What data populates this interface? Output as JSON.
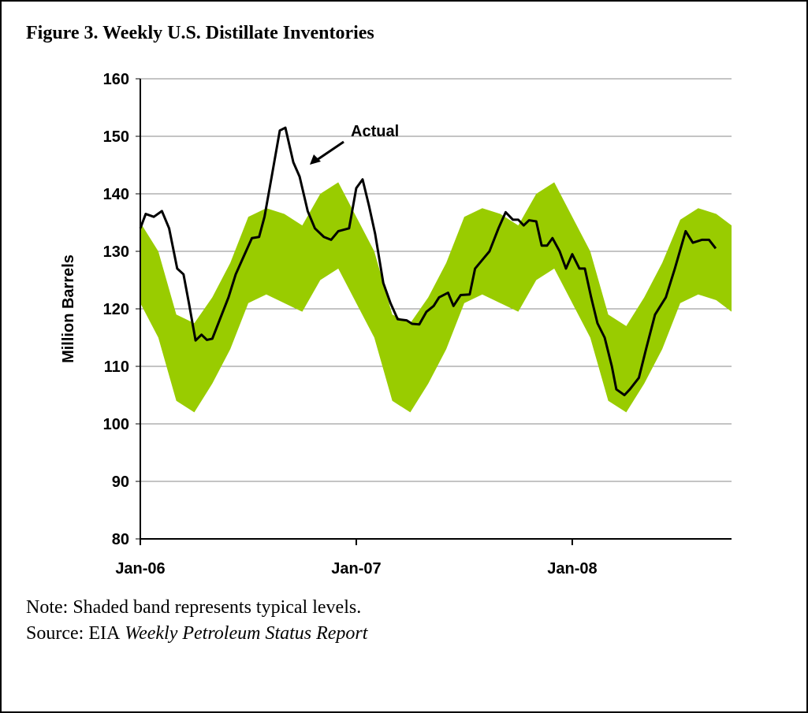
{
  "chart_data": {
    "type": "band-line",
    "title": "Figure 3. Weekly U.S. Distillate Inventories",
    "ylabel": "Million Barrels",
    "annotation": "Actual",
    "note": "Note: Shaded band represents typical levels.",
    "source_prefix": "Source: EIA",
    "source_title": "Weekly Petroleum Status Report",
    "xlim": [
      0,
      32.85
    ],
    "xticks": [
      {
        "value": 0,
        "label": "Jan-06"
      },
      {
        "value": 12,
        "label": "Jan-07"
      },
      {
        "value": 24,
        "label": "Jan-08"
      }
    ],
    "ylim": [
      80,
      160
    ],
    "yticks": [
      80,
      90,
      100,
      110,
      120,
      130,
      140,
      150,
      160
    ],
    "grid": true,
    "band": {
      "color": "#99cc00",
      "x": [
        0,
        1,
        2,
        3,
        4,
        5,
        6,
        7,
        8,
        9,
        10,
        11,
        12,
        13,
        14,
        15,
        16,
        17,
        18,
        19,
        20,
        21,
        22,
        23,
        24,
        25,
        26,
        27,
        28,
        29,
        30,
        31,
        32,
        32.85
      ],
      "upper": [
        135,
        130,
        119,
        117.5,
        122,
        128,
        136,
        137.5,
        136.5,
        134.5,
        140,
        142,
        136,
        130,
        119,
        117.5,
        122,
        128,
        136,
        137.5,
        136.5,
        134.5,
        140,
        142,
        136,
        130,
        119,
        117,
        122,
        128,
        135.5,
        137.5,
        136.5,
        134.5
      ],
      "lower": [
        121,
        115,
        104,
        102,
        107,
        113,
        121,
        122.5,
        121,
        119.5,
        125,
        127,
        121,
        115,
        104,
        102,
        107,
        113,
        121,
        122.5,
        121,
        119.5,
        125,
        127,
        121,
        115,
        104,
        102,
        107,
        113,
        121,
        122.5,
        121.5,
        119.5
      ]
    },
    "series": [
      {
        "color": "#000000",
        "x": [
          0,
          0.3,
          0.75,
          1.2,
          1.6,
          2.05,
          2.4,
          2.7,
          3.07,
          3.4,
          3.7,
          4.0,
          4.4,
          4.9,
          5.3,
          5.8,
          6.2,
          6.6,
          6.9,
          7.3,
          7.75,
          8.06,
          8.5,
          8.85,
          9.3,
          9.7,
          10.2,
          10.6,
          11.0,
          11.6,
          12.0,
          12.35,
          12.7,
          13.05,
          13.5,
          13.9,
          14.3,
          14.8,
          15.1,
          15.5,
          15.9,
          16.3,
          16.6,
          17.1,
          17.4,
          17.8,
          18.3,
          18.6,
          19.0,
          19.4,
          19.9,
          20.3,
          20.7,
          21.0,
          21.3,
          21.6,
          22.0,
          22.3,
          22.6,
          22.9,
          23.3,
          23.65,
          24.0,
          24.4,
          24.7,
          25.05,
          25.4,
          25.8,
          26.2,
          26.45,
          26.9,
          27.2,
          27.7,
          28.1,
          28.6,
          29.2,
          29.7,
          30.3,
          30.7,
          31.2,
          31.6,
          31.97
        ],
        "values": [
          134,
          136.5,
          136,
          137,
          134,
          127,
          126,
          121,
          114.5,
          115.5,
          114.6,
          114.8,
          118,
          122,
          126,
          129.5,
          132.3,
          132.5,
          136,
          143,
          151,
          151.5,
          145.5,
          143,
          137,
          134,
          132.5,
          132,
          133.5,
          134,
          141,
          142.5,
          138,
          133,
          124.5,
          121,
          118.2,
          118,
          117.4,
          117.3,
          119.5,
          120.5,
          122,
          122.8,
          120.5,
          122.4,
          122.5,
          127,
          128.5,
          130,
          134,
          136.8,
          135.5,
          135.5,
          134.5,
          135.4,
          135.2,
          131,
          131,
          132.3,
          130,
          127,
          129.5,
          127,
          127,
          122,
          117.5,
          115,
          110,
          106,
          105,
          106,
          108,
          113,
          119,
          122,
          127,
          133.5,
          131.5,
          132,
          132,
          130.5
        ]
      }
    ]
  }
}
